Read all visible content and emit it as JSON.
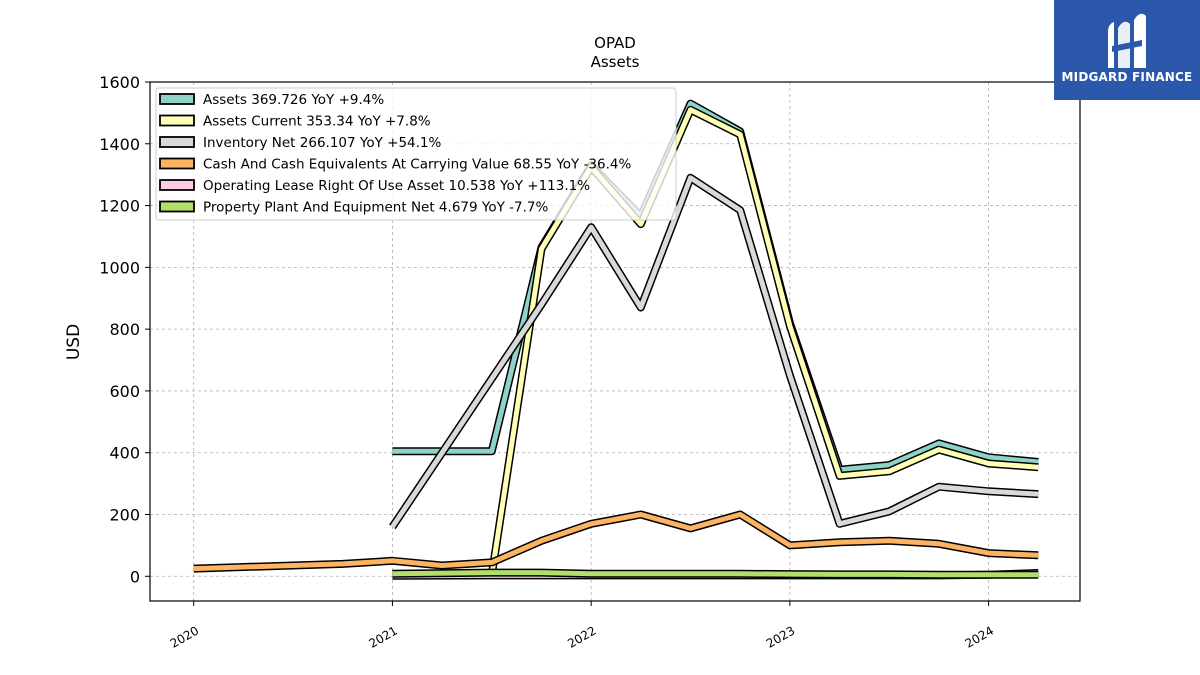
{
  "brand": {
    "name": "MIDGARD FINANCE",
    "color": "#2b58ab"
  },
  "chart_data": {
    "type": "line",
    "title": "OPAD",
    "subtitle": "Assets",
    "ylabel": "USD",
    "xlabel": "",
    "ylim": [
      -80,
      1600
    ],
    "xlim": [
      2019.78,
      2024.46
    ],
    "yticks": [
      0,
      200,
      400,
      600,
      800,
      1000,
      1200,
      1400,
      1600
    ],
    "xticks": [
      2020,
      2021,
      2022,
      2023,
      2024
    ],
    "grid": true,
    "legend_position": "top-left",
    "series": [
      {
        "name": "Assets",
        "legend": "Assets  369.726 YoY +9.4%",
        "color": "#8dd3c7",
        "points": [
          [
            2021.0,
            405
          ],
          [
            2021.5,
            405
          ],
          [
            2021.75,
            1065
          ],
          [
            2022.0,
            1330
          ],
          [
            2022.25,
            1165
          ],
          [
            2022.5,
            1530
          ],
          [
            2022.75,
            1440
          ],
          [
            2023.0,
            820
          ],
          [
            2023.25,
            345
          ],
          [
            2023.5,
            360
          ],
          [
            2023.75,
            430
          ],
          [
            2024.0,
            385
          ],
          [
            2024.25,
            370
          ]
        ]
      },
      {
        "name": "Assets Current",
        "legend": "Assets Current  353.34 YoY +7.8%",
        "color": "#ffffb3",
        "points": [
          [
            2021.5,
            5
          ],
          [
            2021.75,
            1060
          ],
          [
            2022.0,
            1325
          ],
          [
            2022.25,
            1140
          ],
          [
            2022.5,
            1510
          ],
          [
            2022.75,
            1430
          ],
          [
            2023.0,
            810
          ],
          [
            2023.25,
            325
          ],
          [
            2023.5,
            340
          ],
          [
            2023.75,
            410
          ],
          [
            2024.0,
            365
          ],
          [
            2024.25,
            353
          ]
        ]
      },
      {
        "name": "Inventory Net",
        "legend": "Inventory Net  266.107 YoY +54.1%",
        "color": "#d9d9d9",
        "points": [
          [
            2021.0,
            160
          ],
          [
            2021.5,
            640
          ],
          [
            2021.75,
            880
          ],
          [
            2022.0,
            1130
          ],
          [
            2022.25,
            870
          ],
          [
            2022.5,
            1290
          ],
          [
            2022.75,
            1185
          ],
          [
            2023.0,
            650
          ],
          [
            2023.25,
            170
          ],
          [
            2023.5,
            210
          ],
          [
            2023.75,
            290
          ],
          [
            2024.0,
            275
          ],
          [
            2024.25,
            266
          ]
        ]
      },
      {
        "name": "Cash And Cash Equivalents At Carrying Value",
        "legend": "Cash And Cash Equivalents At Carrying Value  68.55 YoY -36.4%",
        "color": "#fdb462",
        "points": [
          [
            2020.0,
            25
          ],
          [
            2020.75,
            40
          ],
          [
            2021.0,
            50
          ],
          [
            2021.25,
            35
          ],
          [
            2021.5,
            45
          ],
          [
            2021.75,
            115
          ],
          [
            2022.0,
            170
          ],
          [
            2022.25,
            200
          ],
          [
            2022.5,
            155
          ],
          [
            2022.75,
            200
          ],
          [
            2023.0,
            100
          ],
          [
            2023.25,
            110
          ],
          [
            2023.5,
            115
          ],
          [
            2023.75,
            105
          ],
          [
            2024.0,
            75
          ],
          [
            2024.25,
            68
          ]
        ]
      },
      {
        "name": "Operating Lease Right Of Use Asset",
        "legend": "Operating Lease Right Of Use Asset  10.538 YoY +113.1%",
        "color": "#fccde5",
        "points": [
          [
            2021.0,
            2
          ],
          [
            2021.5,
            3
          ],
          [
            2021.75,
            3
          ],
          [
            2022.0,
            3
          ],
          [
            2022.25,
            3
          ],
          [
            2022.5,
            3
          ],
          [
            2022.75,
            3
          ],
          [
            2023.0,
            3
          ],
          [
            2023.25,
            3
          ],
          [
            2023.5,
            3
          ],
          [
            2023.75,
            3
          ],
          [
            2024.0,
            5
          ],
          [
            2024.25,
            10.5
          ]
        ]
      },
      {
        "name": "Property Plant And Equipment Net",
        "legend": "Property Plant And Equipment Net  4.679 YoY -7.7%",
        "color": "#b3de69",
        "points": [
          [
            2021.0,
            8
          ],
          [
            2021.5,
            12
          ],
          [
            2021.75,
            12
          ],
          [
            2022.0,
            8
          ],
          [
            2022.25,
            8
          ],
          [
            2022.5,
            8
          ],
          [
            2022.75,
            8
          ],
          [
            2023.0,
            7
          ],
          [
            2023.25,
            6
          ],
          [
            2023.5,
            6
          ],
          [
            2023.75,
            5
          ],
          [
            2024.0,
            5
          ],
          [
            2024.25,
            4.7
          ]
        ]
      }
    ]
  }
}
